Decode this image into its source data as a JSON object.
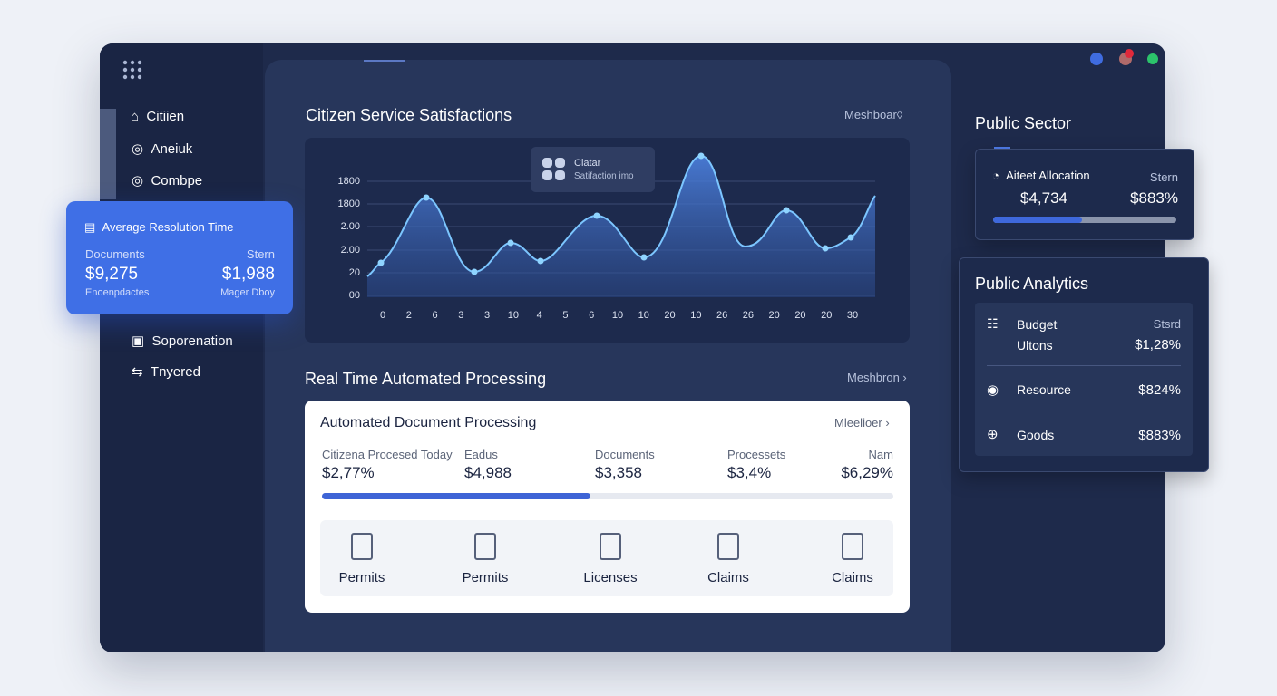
{
  "sidebar": {
    "items": [
      "Citiien",
      "Aneiuk",
      "Combpe",
      "Soporenation",
      "Tnyered"
    ]
  },
  "floating_card": {
    "title": "Average Resolution Time",
    "left_label": "Documents",
    "right_label": "Stern",
    "left_value": "$9,275",
    "right_value": "$1,988",
    "left_note": "Enoenpdactes",
    "right_note": "Mager Dboy"
  },
  "satisfaction": {
    "title": "Citizen Service Satisfactions",
    "link": "Meshboar◊",
    "tooltip": {
      "title": "Clatar",
      "subtitle": "Satifaction imo"
    },
    "y_labels": [
      "1800",
      "1800",
      "2.00",
      "2.00",
      "20",
      "00"
    ],
    "x_labels": [
      "0",
      "2",
      "6",
      "3",
      "3",
      "10",
      "4",
      "5",
      "6",
      "10",
      "10",
      "20",
      "10",
      "26",
      "26",
      "20",
      "20",
      "20",
      "30"
    ]
  },
  "processing": {
    "title": "Real Time Automated Processing",
    "link": "Meshbron ›",
    "card": {
      "title": "Automated Document Processing",
      "link": "Mleelioer ›",
      "stats": [
        {
          "label": "Citizena Procesed Today",
          "value": "$2,77%"
        },
        {
          "label": "Eadus",
          "value": "$4,988"
        },
        {
          "label": "Documents",
          "value": "$3,358"
        },
        {
          "label": "Processets",
          "value": "$3,4%"
        },
        {
          "label": "Nam",
          "value": "$6,29%"
        }
      ],
      "tiles": [
        "Permits",
        "Permits",
        "Licenses",
        "Claims",
        "Claims"
      ]
    }
  },
  "public_sector": {
    "title": "Public Sector",
    "label": "Aiteet Allocation",
    "right_label": "Stern",
    "value": "$4,734",
    "right_value": "$883%"
  },
  "public_analytics": {
    "title": "Public Analytics",
    "rows": [
      {
        "label": "Budget",
        "sublabel": "Ultons",
        "right_label": "Stsrd",
        "value": "$1,28%"
      },
      {
        "label": "Resource",
        "value": "$824%"
      },
      {
        "label": "Goods",
        "value": "$883%"
      }
    ]
  }
}
